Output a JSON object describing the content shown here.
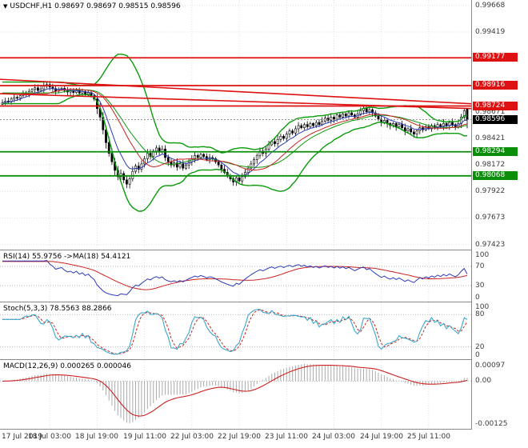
{
  "colors": {
    "up_candle": "#ffffff",
    "down_candle": "#000000",
    "candle_outline": "#000000",
    "resistance": "#dd1111",
    "support": "#0b8f0b",
    "bollinger": "#0a9b0a",
    "ma_fast": "#2e3bb8",
    "ma_slow": "#cc2222",
    "rsi": "#2e3bb8",
    "rsi_ma": "#cc2222",
    "stoch_k": "#3aa8cc",
    "stoch_d": "#cc2222",
    "macd_hist": "#a9a9a9",
    "macd_signal": "#cc2222",
    "grid": "#e0e0e0",
    "level": "#b4b4b4",
    "current_line": "#888888",
    "current_badge_bg": "#000000",
    "axis_text": "#3c3c3c"
  },
  "header": {
    "marker_icon": "▼",
    "symbol_timeframe": "USDCHF,H1",
    "ohlc": "0.98697 0.98697 0.98515 0.98596"
  },
  "panels": {
    "rsi_label": "RSI(14) 55.9756 ->MA(18) 54.4121",
    "stoch_label": "Stoch(5,3,3) 78.5563 88.2866",
    "macd_label": "MACD(12,26,9) 0.000265 0.000046"
  },
  "price_axis": {
    "ticks": [
      "0.99668",
      "0.99419",
      "0.98671",
      "0.98421",
      "0.98172",
      "0.97922",
      "0.97673",
      "0.97423"
    ],
    "line_labels": [
      {
        "text": "0.99177",
        "value": 0.99177,
        "bg": "#dd1111"
      },
      {
        "text": "0.98916",
        "value": 0.98916,
        "bg": "#dd1111"
      },
      {
        "text": "0.98724",
        "value": 0.98724,
        "bg": "#dd1111"
      },
      {
        "text": "0.98596",
        "value": 0.98596,
        "bg": "#000000"
      },
      {
        "text": "0.98294",
        "value": 0.98294,
        "bg": "#0b8f0b"
      },
      {
        "text": "0.98068",
        "value": 0.98068,
        "bg": "#0b8f0b"
      }
    ]
  },
  "indicator_axes": {
    "rsi": [
      "100",
      "70",
      "30",
      "0"
    ],
    "stoch": [
      "100",
      "80",
      "20",
      "0"
    ],
    "macd": [
      "0.00097",
      "0.00",
      "-0.00125"
    ]
  },
  "chart_data": {
    "type": "candlestick",
    "symbol": "USDCHF",
    "timeframe": "H1",
    "x_labels": [
      "17 Jul 2019",
      "18 Jul 03:00",
      "18 Jul 19:00",
      "19 Jul 11:00",
      "22 Jul 03:00",
      "22 Jul 19:00",
      "23 Jul 11:00",
      "24 Jul 03:00",
      "24 Jul 19:00",
      "25 Jul 11:00"
    ],
    "bars_per_label": 16,
    "price_range": {
      "top": 0.9972,
      "bottom": 0.97375
    },
    "open_first": 0.9874,
    "closes": [
      0.98755,
      0.9877,
      0.98762,
      0.9879,
      0.98805,
      0.98798,
      0.9882,
      0.98845,
      0.98838,
      0.98862,
      0.9888,
      0.98895,
      0.9887,
      0.98885,
      0.9891,
      0.98925,
      0.98902,
      0.98888,
      0.98865,
      0.98878,
      0.9889,
      0.9887,
      0.98855,
      0.98865,
      0.9885,
      0.9887,
      0.98845,
      0.9886,
      0.98835,
      0.9885,
      0.9882,
      0.9879,
      0.987,
      0.9862,
      0.985,
      0.9838,
      0.9828,
      0.982,
      0.9812,
      0.9806,
      0.9809,
      0.9803,
      0.9799,
      0.9804,
      0.9811,
      0.9816,
      0.9813,
      0.9818,
      0.9823,
      0.9828,
      0.9825,
      0.983,
      0.9833,
      0.9829,
      0.9832,
      0.9824,
      0.982,
      0.9817,
      0.9819,
      0.9815,
      0.9818,
      0.9814,
      0.9817,
      0.982,
      0.9823,
      0.9826,
      0.9824,
      0.9827,
      0.9825,
      0.9822,
      0.9824,
      0.9823,
      0.982,
      0.9817,
      0.9813,
      0.981,
      0.9807,
      0.9804,
      0.9801,
      0.9805,
      0.9802,
      0.9806,
      0.981,
      0.9814,
      0.9818,
      0.9822,
      0.9826,
      0.983,
      0.9828,
      0.9832,
      0.9836,
      0.9839,
      0.9837,
      0.9841,
      0.9844,
      0.9842,
      0.9846,
      0.9849,
      0.9847,
      0.9851,
      0.9854,
      0.9852,
      0.9855,
      0.9853,
      0.9856,
      0.9854,
      0.9857,
      0.9855,
      0.9858,
      0.9861,
      0.9859,
      0.9862,
      0.986,
      0.9864,
      0.9862,
      0.9865,
      0.9863,
      0.9866,
      0.9864,
      0.9862,
      0.9865,
      0.9868,
      0.987,
      0.9867,
      0.9869,
      0.9866,
      0.9863,
      0.986,
      0.9857,
      0.9859,
      0.9856,
      0.9854,
      0.9856,
      0.9853,
      0.9855,
      0.9852,
      0.9849,
      0.9851,
      0.9848,
      0.9846,
      0.9849,
      0.9852,
      0.985,
      0.9853,
      0.9851,
      0.9854,
      0.9852,
      0.9855,
      0.9853,
      0.9856,
      0.9854,
      0.9857,
      0.9855,
      0.9853,
      0.9856,
      0.9862,
      0.9868,
      0.98596
    ],
    "last_bar": {
      "open": 0.98697,
      "high": 0.98697,
      "low": 0.98515,
      "close": 0.98596
    },
    "current_price": 0.98596,
    "hlines": [
      {
        "value": 0.99177,
        "color": "#dd1111"
      },
      {
        "value": 0.98916,
        "color": "#dd1111"
      },
      {
        "value": 0.98724,
        "color": "#dd1111"
      },
      {
        "value": 0.98294,
        "color": "#0b8f0b"
      },
      {
        "value": 0.98068,
        "color": "#0b8f0b"
      }
    ],
    "trendlines": [
      {
        "from": 0.98975,
        "to": 0.98745,
        "color": "#dd1111"
      },
      {
        "from": 0.9884,
        "to": 0.987,
        "color": "#dd1111"
      }
    ],
    "indicators": {
      "bollinger": {
        "period": 20,
        "deviation": 2
      },
      "ma_fast": {
        "type": "ema",
        "period": 8
      },
      "ma_slow": {
        "type": "sma",
        "period": 16
      },
      "rsi": {
        "period": 14,
        "ma_period": 18,
        "levels": [
          70,
          30
        ]
      },
      "stoch": {
        "k": 5,
        "slowing": 3,
        "d": 3,
        "levels": [
          80,
          20
        ]
      },
      "macd": {
        "fast": 12,
        "slow": 26,
        "signal": 9
      }
    }
  }
}
